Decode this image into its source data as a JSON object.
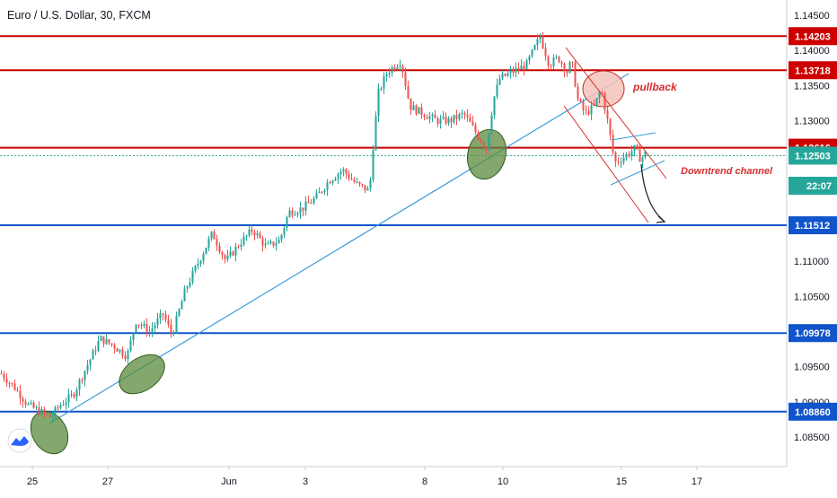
{
  "window": {
    "title": "Euro / U.S. Dollar, 30, FXCM",
    "countdown": "22:07"
  },
  "colors": {
    "resistance_line": "#cc0000",
    "support_line": "#1155cc",
    "trendline": "#3a9bdc",
    "channel_line": "#d32f2f",
    "candle_up": "#26a69a",
    "candle_down": "#ef5350",
    "current_price": "#26a69a",
    "countdown_bg": "#26a69a",
    "ellipse_green": "#5a8a3c",
    "ellipse_pink": "#f4c2b8",
    "annotation_text": "#d32f2f",
    "background": "#ffffff"
  },
  "chart_data": {
    "type": "candlestick",
    "title": "Euro / U.S. Dollar, 30, FXCM",
    "y_axis_ticks": [
      "1.14500",
      "1.14000",
      "1.13500",
      "1.13000",
      "1.12500",
      "1.12000",
      "1.11500",
      "1.11000",
      "1.10500",
      "1.10000",
      "1.09500",
      "1.09000",
      "1.08500"
    ],
    "x_axis_ticks": [
      "25",
      "27",
      "Jun",
      "3",
      "8",
      "10",
      "15",
      "17"
    ],
    "ylim": [
      1.0816,
      1.1485
    ],
    "grid": false,
    "price_lines": [
      {
        "kind": "resistance",
        "value": 1.14203,
        "label": "1.14203"
      },
      {
        "kind": "resistance",
        "value": 1.13718,
        "label": "1.13718"
      },
      {
        "kind": "resistance",
        "value": 1.12616,
        "label": "1.12616"
      },
      {
        "kind": "support",
        "value": 1.11512,
        "label": "1.11512"
      },
      {
        "kind": "support",
        "value": 1.09978,
        "label": "1.09978"
      },
      {
        "kind": "support",
        "value": 1.0886,
        "label": "1.08860"
      }
    ],
    "current_price": {
      "value": 1.12503,
      "label": "1.12503"
    },
    "price_path": [
      [
        0,
        1.094
      ],
      [
        15,
        1.092
      ],
      [
        30,
        1.0895
      ],
      [
        45,
        1.0885
      ],
      [
        55,
        1.0878
      ],
      [
        65,
        1.0895
      ],
      [
        80,
        1.091
      ],
      [
        95,
        1.095
      ],
      [
        110,
        1.099
      ],
      [
        125,
        1.098
      ],
      [
        140,
        1.0965
      ],
      [
        150,
        1.1015
      ],
      [
        165,
        1.1
      ],
      [
        180,
        1.1025
      ],
      [
        190,
        1.0995
      ],
      [
        205,
        1.106
      ],
      [
        220,
        1.11
      ],
      [
        235,
        1.114
      ],
      [
        250,
        1.11
      ],
      [
        265,
        1.1125
      ],
      [
        280,
        1.1145
      ],
      [
        295,
        1.112
      ],
      [
        310,
        1.113
      ],
      [
        320,
        1.117
      ],
      [
        335,
        1.1175
      ],
      [
        350,
        1.119
      ],
      [
        365,
        1.1215
      ],
      [
        380,
        1.123
      ],
      [
        395,
        1.121
      ],
      [
        410,
        1.12
      ],
      [
        415,
        1.128
      ],
      [
        420,
        1.134
      ],
      [
        430,
        1.137
      ],
      [
        445,
        1.1385
      ],
      [
        455,
        1.132
      ],
      [
        470,
        1.131
      ],
      [
        485,
        1.13
      ],
      [
        500,
        1.13
      ],
      [
        515,
        1.131
      ],
      [
        530,
        1.128
      ],
      [
        540,
        1.126
      ],
      [
        548,
        1.133
      ],
      [
        555,
        1.136
      ],
      [
        570,
        1.137
      ],
      [
        585,
        1.138
      ],
      [
        600,
        1.142
      ],
      [
        610,
        1.138
      ],
      [
        620,
        1.139
      ],
      [
        630,
        1.137
      ],
      [
        635,
        1.1385
      ],
      [
        642,
        1.133
      ],
      [
        650,
        1.131
      ],
      [
        660,
        1.132
      ],
      [
        668,
        1.1345
      ],
      [
        675,
        1.13
      ],
      [
        683,
        1.124
      ],
      [
        695,
        1.125
      ],
      [
        705,
        1.126
      ],
      [
        712,
        1.1245
      ],
      [
        718,
        1.1255
      ]
    ],
    "annotations": [
      {
        "text": "pullback"
      },
      {
        "text": "Downtrend channel"
      }
    ]
  }
}
